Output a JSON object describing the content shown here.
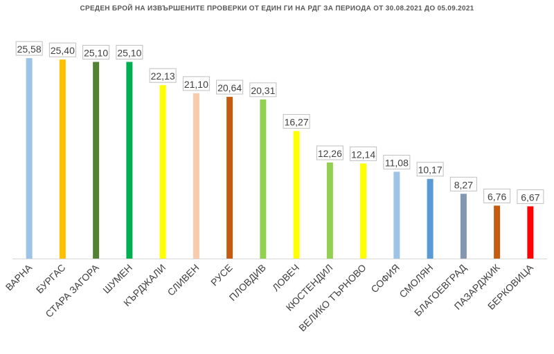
{
  "chart_data": {
    "type": "bar",
    "title": "СРЕДЕН БРОЙ НА ИЗВЪРШЕНИТЕ ПРОВЕРКИ ОТ ЕДИН ГИ НА РДГ ЗА ПЕРИОДА ОТ 30.08.2021 ДО 05.09.2021",
    "xlabel": "",
    "ylabel": "",
    "ylim": [
      0,
      30
    ],
    "grid": false,
    "legend": "none",
    "categories": [
      "ВАРНА",
      "БУРГАС",
      "СТАРА ЗАГОРА",
      "ШУМЕН",
      "КЪРДЖАЛИ",
      "СЛИВЕН",
      "РУСЕ",
      "ПЛОВДИВ",
      "ЛОВЕЧ",
      "КЮСТЕНДИЛ",
      "ВЕЛИКО ТЪРНОВО",
      "СОФИЯ",
      "СМОЛЯН",
      "БЛАГОЕВГРАД",
      "ПАЗАРДЖИК",
      "БЕРКОВИЦА"
    ],
    "values": [
      25.58,
      25.4,
      25.1,
      25.1,
      22.13,
      21.1,
      20.64,
      20.31,
      16.27,
      12.26,
      12.14,
      11.08,
      10.17,
      8.27,
      6.76,
      6.67
    ],
    "value_labels": [
      "25,58",
      "25,40",
      "25,10",
      "25,10",
      "22,13",
      "21,10",
      "20,64",
      "20,31",
      "16,27",
      "12,26",
      "12,14",
      "11,08",
      "10,17",
      "8,27",
      "6,76",
      "6,67"
    ],
    "colors": [
      "#9dc3e6",
      "#ffc000",
      "#548235",
      "#00b050",
      "#ffff00",
      "#f8cbad",
      "#c55a11",
      "#92d050",
      "#ffff00",
      "#92d050",
      "#ffff00",
      "#9dc3e6",
      "#5b9bd5",
      "#8497b0",
      "#c55a11",
      "#ff0000"
    ]
  }
}
